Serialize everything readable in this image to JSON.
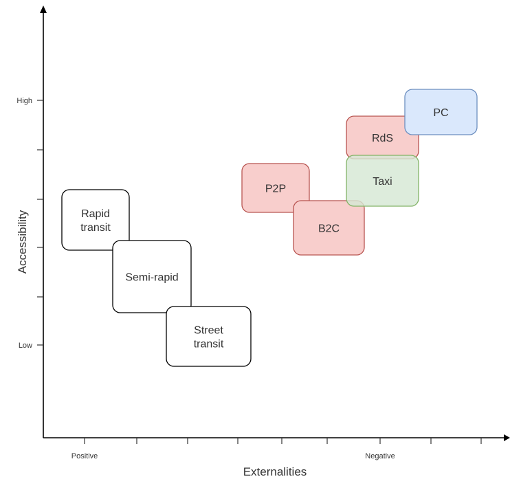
{
  "x_axis": {
    "title": "Externalities",
    "tick_labels": [
      "Positive",
      "Negative"
    ],
    "tick_count": 9
  },
  "y_axis": {
    "title": "Accessibility",
    "tick_labels": [
      "High",
      "Low"
    ],
    "tick_count": 6
  },
  "colors": {
    "white": "#ffffff",
    "red": "#f8cecc",
    "red_border": "#b85450",
    "green": "#d5e8d4",
    "green_border": "#82b366",
    "blue": "#dae8fc",
    "blue_border": "#6c8ebf",
    "black": "#000000"
  },
  "modes": [
    {
      "id": "rapid-transit",
      "lines": [
        "Rapid",
        "transit"
      ],
      "color": "white"
    },
    {
      "id": "semi-rapid",
      "lines": [
        "Semi-rapid"
      ],
      "color": "white"
    },
    {
      "id": "street-transit",
      "lines": [
        "Street",
        "transit"
      ],
      "color": "white"
    },
    {
      "id": "p2p",
      "lines": [
        "P2P"
      ],
      "color": "red"
    },
    {
      "id": "b2c",
      "lines": [
        "B2C"
      ],
      "color": "red"
    },
    {
      "id": "rds",
      "lines": [
        "RdS"
      ],
      "color": "red"
    },
    {
      "id": "taxi",
      "lines": [
        "Taxi"
      ],
      "color": "green"
    },
    {
      "id": "pc",
      "lines": [
        "PC"
      ],
      "color": "blue"
    }
  ]
}
